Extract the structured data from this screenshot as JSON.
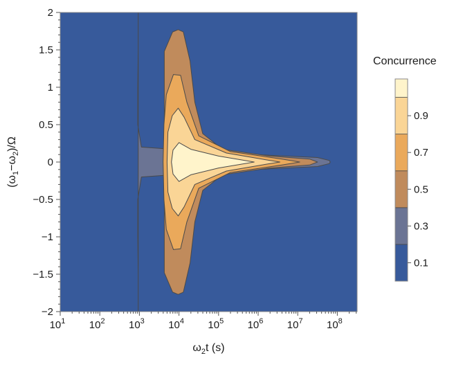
{
  "chart_data": {
    "type": "contour",
    "xlabel_parts": {
      "base": "ω",
      "sub": "2",
      "rest": "t (s)"
    },
    "ylabel_parts": {
      "open": "(ω",
      "sub1": "1",
      "mid": "−ω",
      "sub2": "2",
      "close": ")/Ω"
    },
    "x_scale": "log",
    "xlim": [
      1,
      8.5
    ],
    "ylim": [
      -2,
      2
    ],
    "x_ticks": [
      {
        "exp": 1,
        "base": "10",
        "sup": "1"
      },
      {
        "exp": 2,
        "base": "10",
        "sup": "2"
      },
      {
        "exp": 3,
        "base": "10",
        "sup": "3"
      },
      {
        "exp": 4,
        "base": "10",
        "sup": "4"
      },
      {
        "exp": 5,
        "base": "10",
        "sup": "5"
      },
      {
        "exp": 6,
        "base": "10",
        "sup": "6"
      },
      {
        "exp": 7,
        "base": "10",
        "sup": "7"
      },
      {
        "exp": 8,
        "base": "10",
        "sup": "8"
      }
    ],
    "y_ticks": [
      {
        "value": 2,
        "label": "2"
      },
      {
        "value": 1.5,
        "label": "1.5"
      },
      {
        "value": 1,
        "label": "1"
      },
      {
        "value": 0.5,
        "label": "0.5"
      },
      {
        "value": 0,
        "label": "0"
      },
      {
        "value": -0.5,
        "label": "−0.5"
      },
      {
        "value": -1,
        "label": "−1"
      },
      {
        "value": -1.5,
        "label": "−1.5"
      },
      {
        "value": -2,
        "label": "−2"
      }
    ],
    "legend": {
      "title": "Concurrence",
      "labels": [
        {
          "value": 0.9,
          "label": "0.9"
        },
        {
          "value": 0.7,
          "label": "0.7"
        },
        {
          "value": 0.5,
          "label": "0.5"
        },
        {
          "value": 0.3,
          "label": "0.3"
        },
        {
          "value": 0.1,
          "label": "0.1"
        }
      ],
      "range": [
        0,
        1.1
      ]
    },
    "levels": [
      {
        "range": [
          0,
          0.2
        ],
        "color": "#375a9b"
      },
      {
        "range": [
          0.2,
          0.4
        ],
        "color": "#6b7494"
      },
      {
        "range": [
          0.4,
          0.6
        ],
        "color": "#c08b5c"
      },
      {
        "range": [
          0.6,
          0.8
        ],
        "color": "#eaa95b"
      },
      {
        "range": [
          0.8,
          1.0
        ],
        "color": "#fad596"
      },
      {
        "range": [
          1.0,
          1.1
        ],
        "color": "#fff4cb"
      }
    ],
    "contours": [
      {
        "level": 0.2,
        "color": "#6b7494",
        "half_width": [
          [
            2.97,
            2.0
          ],
          [
            2.97,
            1.5
          ],
          [
            2.96,
            1.0
          ],
          [
            2.96,
            0.5
          ],
          [
            3.05,
            0.2
          ],
          [
            4.4,
            0.15
          ],
          [
            5.3,
            0.12
          ],
          [
            6.3,
            0.09
          ],
          [
            7.5,
            0.06
          ],
          [
            7.8,
            0.02
          ],
          [
            7.82,
            0.0
          ]
        ]
      },
      {
        "level": 0.4,
        "color": "#c08b5c",
        "half_width": [
          [
            3.63,
            1.48
          ],
          [
            3.84,
            1.74
          ],
          [
            3.98,
            1.77
          ],
          [
            4.11,
            1.74
          ],
          [
            4.28,
            1.35
          ],
          [
            4.4,
            0.8
          ],
          [
            4.6,
            0.38
          ],
          [
            5.1,
            0.17
          ],
          [
            6.3,
            0.08
          ],
          [
            7.3,
            0.04
          ],
          [
            7.5,
            0.0
          ]
        ]
      },
      {
        "level": 0.6,
        "color": "#eaa95b",
        "half_width": [
          [
            3.6,
            0.0
          ],
          [
            3.62,
            0.5
          ],
          [
            3.68,
            0.9
          ],
          [
            3.86,
            1.17
          ],
          [
            4.04,
            1.16
          ],
          [
            4.2,
            0.8
          ],
          [
            4.5,
            0.35
          ],
          [
            5.3,
            0.14
          ],
          [
            6.6,
            0.04
          ],
          [
            7.05,
            0.0
          ]
        ]
      },
      {
        "level": 0.8,
        "color": "#fad596",
        "half_width": [
          [
            3.7,
            0.0
          ],
          [
            3.72,
            0.4
          ],
          [
            3.83,
            0.62
          ],
          [
            3.98,
            0.72
          ],
          [
            4.13,
            0.6
          ],
          [
            4.4,
            0.3
          ],
          [
            5.2,
            0.12
          ],
          [
            6.3,
            0.02
          ],
          [
            6.55,
            0.0
          ]
        ]
      },
      {
        "level": 1.0,
        "color": "#fff4cb",
        "half_width": [
          [
            3.81,
            0.0
          ],
          [
            3.85,
            0.16
          ],
          [
            4.0,
            0.26
          ],
          [
            4.3,
            0.17
          ],
          [
            5.0,
            0.08
          ],
          [
            5.9,
            0.0
          ]
        ]
      }
    ]
  }
}
